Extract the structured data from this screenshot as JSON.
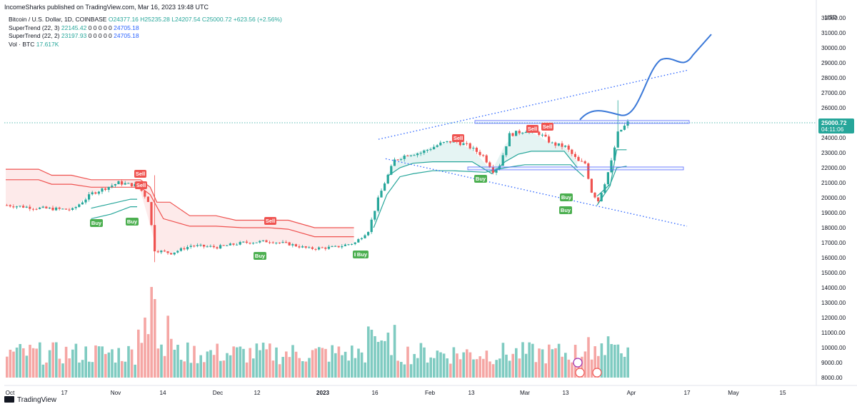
{
  "header": {
    "published": "IncomeSharks published on TradingView.com, Mar 16, 2023 19:48 UTC"
  },
  "legend": {
    "symbol": "Bitcoin / U.S. Dollar, 1D, COINBASE",
    "o": "O24377.16",
    "h": "H25235.28",
    "l": "L24207.54",
    "c": "C25000.72",
    "chg": "+623.56 (+2.56%)",
    "st1_name": "SuperTrend (22, 3)",
    "st1_v1": "22145.42",
    "st1_zeros": "0 0 0 0 0",
    "st1_v2": "24705.18",
    "st2_name": "SuperTrend (22, 2)",
    "st2_v1": "23197.93",
    "st2_zeros": "0 0 0 0 0",
    "st2_v2": "24705.18",
    "vol_name": "Vol · BTC",
    "vol_val": "17.617K"
  },
  "footer": {
    "brand": "TradingView"
  },
  "chart_data": {
    "type": "candlestick",
    "currency_label": "USD",
    "y_ticks": [
      8000,
      9000,
      10000,
      11000,
      12000,
      13000,
      14000,
      15000,
      16000,
      17000,
      18000,
      19000,
      20000,
      21000,
      22000,
      23000,
      24000,
      25000,
      26000,
      27000,
      28000,
      29000,
      30000,
      31000,
      32000
    ],
    "y_tick_labels": [
      "8000.00",
      "9000.00",
      "10000.00",
      "11000.00",
      "12000.00",
      "13000.00",
      "14000.00",
      "15000.00",
      "16000.00",
      "17000.00",
      "18000.00",
      "19000.00",
      "20000.00",
      "21000.00",
      "22000.00",
      "23000.00",
      "24000.00",
      "25000.00",
      "26000.00",
      "27000.00",
      "28000.00",
      "29000.00",
      "30000.00",
      "31000.00",
      "32000.00"
    ],
    "x_tick_labels": [
      "Oct",
      "17",
      "Nov",
      "14",
      "Dec",
      "12",
      "2023",
      "16",
      "Feb",
      "13",
      "Mar",
      "13",
      "Apr",
      "17",
      "May",
      "15"
    ],
    "last_price": "25000.72",
    "countdown": "04:11:06",
    "colors": {
      "up": "#26a69a",
      "down": "#ef5350",
      "vol_up": "#7fcbc1",
      "vol_down": "#f5a6a4",
      "trend": "#3a78d8"
    },
    "signals": [
      {
        "label": "Sell"
      },
      {
        "label": "Sell"
      },
      {
        "label": "Buy"
      },
      {
        "label": "Buy"
      },
      {
        "label": "Sell"
      },
      {
        "label": "Buy"
      },
      {
        "label": "Buy"
      },
      {
        "label": "Buy"
      },
      {
        "label": "Sell"
      },
      {
        "label": "Buy"
      },
      {
        "label": "Sell"
      },
      {
        "label": "Sell"
      },
      {
        "label": "Buy"
      },
      {
        "label": "Buy"
      }
    ],
    "seed": 7
  }
}
